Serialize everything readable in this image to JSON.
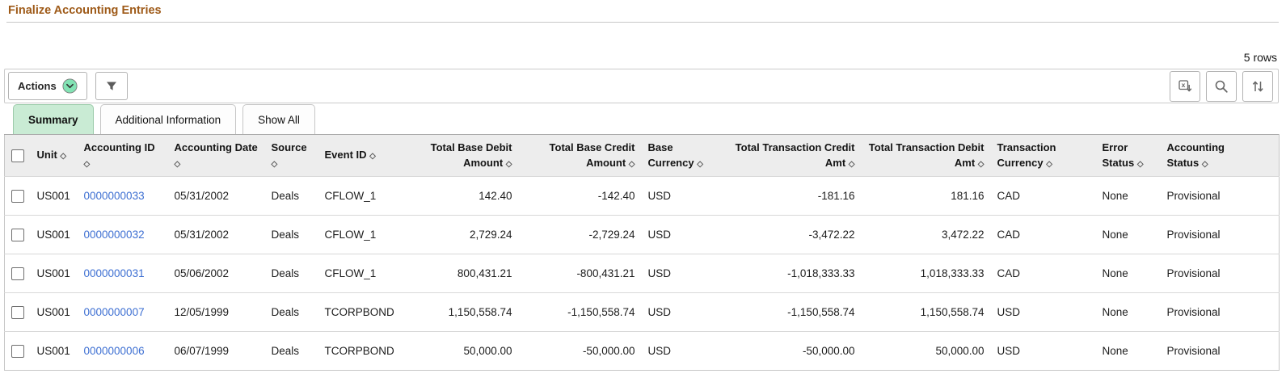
{
  "page": {
    "title": "Finalize Accounting Entries",
    "rows_count": "5 rows"
  },
  "toolbar": {
    "actions_label": "Actions",
    "icons": [
      {
        "name": "chevron-down-circle-icon",
        "color": "#82e3b4"
      },
      {
        "name": "filter-icon",
        "color": "#5c5c5c"
      },
      {
        "name": "export-grid-icon",
        "color": "#666666"
      },
      {
        "name": "search-icon",
        "color": "#666666"
      },
      {
        "name": "sort-icon",
        "color": "#666666"
      }
    ]
  },
  "tabs": [
    {
      "label": "Summary",
      "active": true
    },
    {
      "label": "Additional Information",
      "active": false
    },
    {
      "label": "Show All",
      "active": false
    }
  ],
  "grid": {
    "sort_glyph": "◇",
    "columns": [
      {
        "key": "unit",
        "label": "Unit",
        "align": "left"
      },
      {
        "key": "accounting_id",
        "label": "Accounting ID",
        "align": "left",
        "type": "link"
      },
      {
        "key": "accounting_date",
        "label": "Accounting Date",
        "align": "left"
      },
      {
        "key": "source",
        "label": "Source",
        "align": "left"
      },
      {
        "key": "event_id",
        "label": "Event ID",
        "align": "left"
      },
      {
        "key": "total_base_debit_amount",
        "label": "Total Base Debit Amount",
        "align": "right"
      },
      {
        "key": "total_base_credit_amount",
        "label": "Total Base Credit Amount",
        "align": "right"
      },
      {
        "key": "base_currency",
        "label": "Base Currency",
        "align": "left"
      },
      {
        "key": "total_transaction_credit_amt",
        "label": "Total Transaction Credit Amt",
        "align": "right"
      },
      {
        "key": "total_transaction_debit_amt",
        "label": "Total Transaction Debit Amt",
        "align": "right"
      },
      {
        "key": "transaction_currency",
        "label": "Transaction Currency",
        "align": "left"
      },
      {
        "key": "error_status",
        "label": "Error Status",
        "align": "left"
      },
      {
        "key": "accounting_status",
        "label": "Accounting Status",
        "align": "left"
      }
    ],
    "rows": [
      {
        "unit": "US001",
        "accounting_id": "0000000033",
        "accounting_date": "05/31/2002",
        "source": "Deals",
        "event_id": "CFLOW_1",
        "total_base_debit_amount": "142.40",
        "total_base_credit_amount": "-142.40",
        "base_currency": "USD",
        "total_transaction_credit_amt": "-181.16",
        "total_transaction_debit_amt": "181.16",
        "transaction_currency": "CAD",
        "error_status": "None",
        "accounting_status": "Provisional"
      },
      {
        "unit": "US001",
        "accounting_id": "0000000032",
        "accounting_date": "05/31/2002",
        "source": "Deals",
        "event_id": "CFLOW_1",
        "total_base_debit_amount": "2,729.24",
        "total_base_credit_amount": "-2,729.24",
        "base_currency": "USD",
        "total_transaction_credit_amt": "-3,472.22",
        "total_transaction_debit_amt": "3,472.22",
        "transaction_currency": "CAD",
        "error_status": "None",
        "accounting_status": "Provisional"
      },
      {
        "unit": "US001",
        "accounting_id": "0000000031",
        "accounting_date": "05/06/2002",
        "source": "Deals",
        "event_id": "CFLOW_1",
        "total_base_debit_amount": "800,431.21",
        "total_base_credit_amount": "-800,431.21",
        "base_currency": "USD",
        "total_transaction_credit_amt": "-1,018,333.33",
        "total_transaction_debit_amt": "1,018,333.33",
        "transaction_currency": "CAD",
        "error_status": "None",
        "accounting_status": "Provisional"
      },
      {
        "unit": "US001",
        "accounting_id": "0000000007",
        "accounting_date": "12/05/1999",
        "source": "Deals",
        "event_id": "TCORPBOND",
        "total_base_debit_amount": "1,150,558.74",
        "total_base_credit_amount": "-1,150,558.74",
        "base_currency": "USD",
        "total_transaction_credit_amt": "-1,150,558.74",
        "total_transaction_debit_amt": "1,150,558.74",
        "transaction_currency": "USD",
        "error_status": "None",
        "accounting_status": "Provisional"
      },
      {
        "unit": "US001",
        "accounting_id": "0000000006",
        "accounting_date": "06/07/1999",
        "source": "Deals",
        "event_id": "TCORPBOND",
        "total_base_debit_amount": "50,000.00",
        "total_base_credit_amount": "-50,000.00",
        "base_currency": "USD",
        "total_transaction_credit_amt": "-50,000.00",
        "total_transaction_debit_amt": "50,000.00",
        "transaction_currency": "USD",
        "error_status": "None",
        "accounting_status": "Provisional"
      }
    ]
  },
  "colors": {
    "title": "#9e5a18",
    "link": "#3d6fd2",
    "active_tab_bg": "#c9ebd4",
    "header_bg": "#ededed",
    "accent_green": "#82e3b4"
  }
}
